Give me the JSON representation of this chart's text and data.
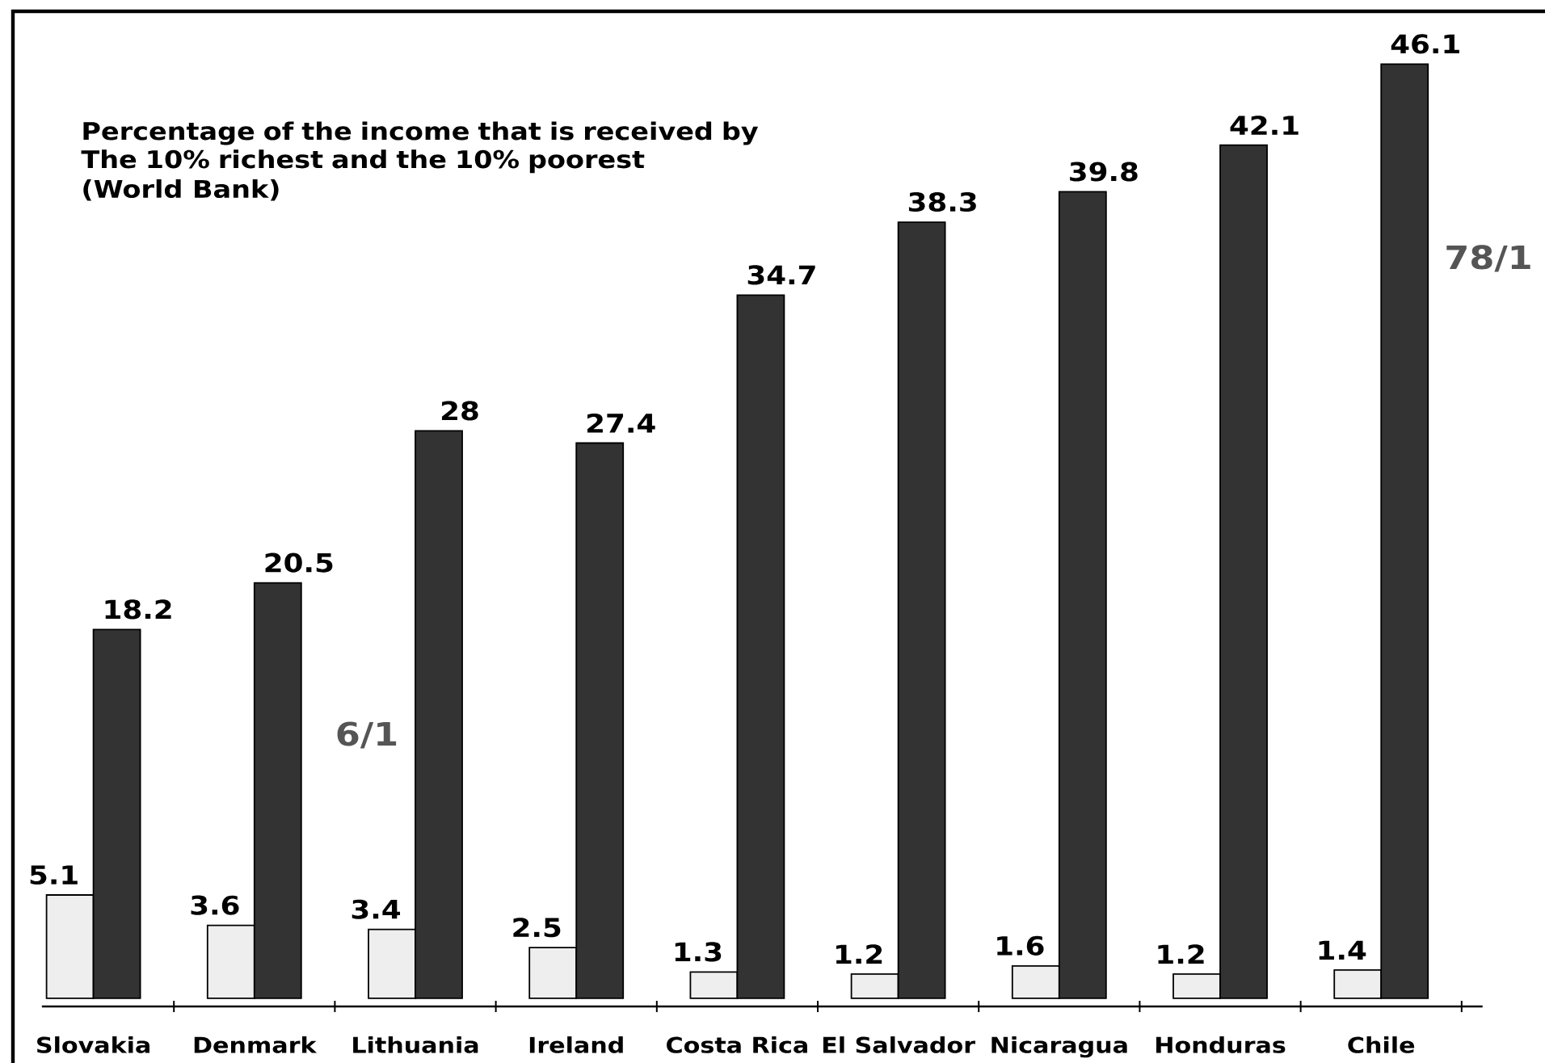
{
  "chart_data": {
    "type": "bar",
    "title": "Percentage of the income that is received by The 10% richest and the 10% poorest",
    "subtitle": "(World Bank)",
    "categories": [
      "Slovakia",
      "Denmark",
      "Lithuania",
      "Ireland",
      "Costa Rica",
      "El Salvador",
      "Nicaragua",
      "Honduras",
      "Chile"
    ],
    "series": [
      {
        "color": "#eeeeee",
        "values": [
          5.1,
          3.6,
          3.4,
          2.5,
          1.3,
          1.2,
          1.6,
          1.2,
          1.4
        ]
      },
      {
        "color": "#333333",
        "values": [
          18.2,
          20.5,
          28,
          27.4,
          34.7,
          38.3,
          39.8,
          42.1,
          46.1
        ]
      }
    ],
    "data_labels": true,
    "annotations": [
      "6/1",
      "78/1"
    ]
  }
}
